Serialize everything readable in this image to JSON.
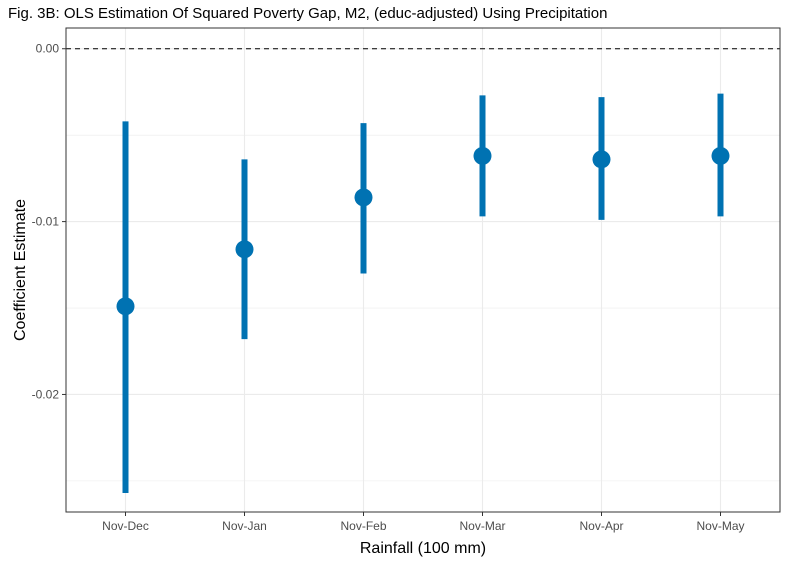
{
  "chart_data": {
    "type": "scatter",
    "title": "Fig. 3B: OLS Estimation Of Squared Poverty Gap, M2, (educ-adjusted) Using Precipitation",
    "xlabel": "Rainfall (100 mm)",
    "ylabel": "Coefficient Estimate",
    "categories": [
      "Nov-Dec",
      "Nov-Jan",
      "Nov-Feb",
      "Nov-Mar",
      "Nov-Apr",
      "Nov-May"
    ],
    "series": [
      {
        "values": [
          -0.0149,
          -0.0116,
          -0.0086,
          -0.0062,
          -0.0064,
          -0.0062
        ],
        "lower": [
          -0.0257,
          -0.0168,
          -0.013,
          -0.0097,
          -0.0099,
          -0.0097
        ],
        "upper": [
          -0.0042,
          -0.0064,
          -0.0043,
          -0.0027,
          -0.0028,
          -0.0026
        ]
      }
    ],
    "y_ticks": [
      0,
      -0.01,
      -0.02
    ],
    "y_tick_labels": [
      "0.00",
      "-0.01",
      "-0.02"
    ],
    "ylim": [
      -0.0268,
      0.0012
    ],
    "reference_line": 0,
    "grid": true,
    "legend": "none",
    "colors": {
      "marker": "#0072b2",
      "grid": "#ebebeb",
      "panel_border": "#333333"
    }
  }
}
